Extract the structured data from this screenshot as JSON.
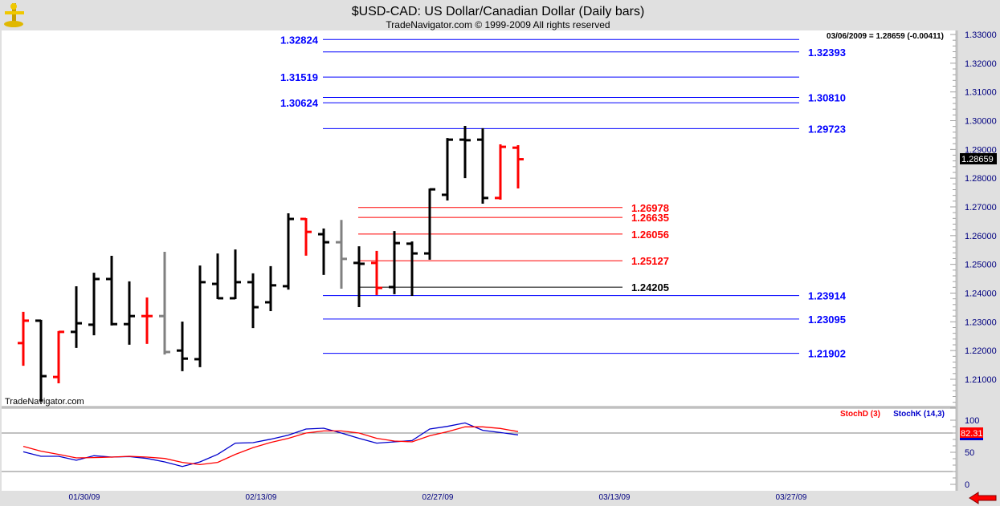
{
  "header": {
    "title": "$USD-CAD:  US Dollar/Canadian Dollar  (Daily bars)",
    "subtitle": "TradeNavigator.com © 1999-2009 All rights reserved",
    "last_quote": "03/06/2009 = 1.28659 (-0.00411)",
    "watermark": "TradeNavigator.com"
  },
  "colors": {
    "up": "#000000",
    "down": "#ff0000",
    "neutral": "#808080",
    "level_blue": "#0000ff",
    "level_red": "#ff0000",
    "axis_text": "#000080",
    "stoch_d": "#ff0000",
    "stoch_k": "#0000cc"
  },
  "chart_data": [
    {
      "type": "ohlc",
      "title": "$USD-CAD:  US Dollar/Canadian Dollar  (Daily bars)",
      "ylim": [
        1.2,
        1.33
      ],
      "y_ticks": [
        "1.33000",
        "1.32000",
        "1.31000",
        "1.30000",
        "1.29000",
        "1.28000",
        "1.27000",
        "1.26000",
        "1.25000",
        "1.24000",
        "1.23000",
        "1.22000",
        "1.21000"
      ],
      "x_ticks": [
        {
          "label": "01/30/09",
          "date": "2009-01-30"
        },
        {
          "label": "02/13/09",
          "date": "2009-02-13"
        },
        {
          "label": "02/27/09",
          "date": "2009-02-27"
        },
        {
          "label": "03/13/09",
          "date": "2009-03-13"
        },
        {
          "label": "03/27/09",
          "date": "2009-03-27"
        }
      ],
      "x_range": [
        "2009-01-27",
        "2009-03-27"
      ],
      "last_price": "1.28659",
      "bars": [
        {
          "date": "2009-01-27",
          "o": 1.2226,
          "h": 1.2332,
          "l": 1.215,
          "c": 1.2304,
          "color": "down"
        },
        {
          "date": "2009-01-28",
          "o": 1.2304,
          "h": 1.2304,
          "l": 1.2025,
          "c": 1.2111,
          "color": "up"
        },
        {
          "date": "2009-01-29",
          "o": 1.2108,
          "h": 1.2265,
          "l": 1.2089,
          "c": 1.2265,
          "color": "down"
        },
        {
          "date": "2009-01-30",
          "o": 1.2265,
          "h": 1.2421,
          "l": 1.2212,
          "c": 1.2295,
          "color": "up"
        },
        {
          "date": "2009-02-02",
          "o": 1.229,
          "h": 1.2468,
          "l": 1.2256,
          "c": 1.2449,
          "color": "up"
        },
        {
          "date": "2009-02-03",
          "o": 1.2449,
          "h": 1.2527,
          "l": 1.229,
          "c": 1.2292,
          "color": "up"
        },
        {
          "date": "2009-02-04",
          "o": 1.2292,
          "h": 1.2438,
          "l": 1.2223,
          "c": 1.232,
          "color": "up"
        },
        {
          "date": "2009-02-05",
          "o": 1.232,
          "h": 1.2382,
          "l": 1.2226,
          "c": 1.232,
          "color": "down"
        },
        {
          "date": "2009-02-06",
          "o": 1.232,
          "h": 1.2541,
          "l": 1.2189,
          "c": 1.2195,
          "color": "neutral"
        },
        {
          "date": "2009-02-09",
          "o": 1.22,
          "h": 1.2298,
          "l": 1.2131,
          "c": 1.2172,
          "color": "up"
        },
        {
          "date": "2009-02-10",
          "o": 1.217,
          "h": 1.2493,
          "l": 1.2145,
          "c": 1.2438,
          "color": "up"
        },
        {
          "date": "2009-02-11",
          "o": 1.2432,
          "h": 1.2535,
          "l": 1.2382,
          "c": 1.2382,
          "color": "up"
        },
        {
          "date": "2009-02-12",
          "o": 1.2382,
          "h": 1.2549,
          "l": 1.2382,
          "c": 1.2438,
          "color": "up"
        },
        {
          "date": "2009-02-13",
          "o": 1.2438,
          "h": 1.2466,
          "l": 1.2281,
          "c": 1.2351,
          "color": "up"
        },
        {
          "date": "2009-02-16",
          "o": 1.2368,
          "h": 1.2491,
          "l": 1.234,
          "c": 1.2427,
          "color": "up"
        },
        {
          "date": "2009-02-17",
          "o": 1.2424,
          "h": 1.2675,
          "l": 1.2415,
          "c": 1.2658,
          "color": "up"
        },
        {
          "date": "2009-02-18",
          "o": 1.2658,
          "h": 1.2658,
          "l": 1.2533,
          "c": 1.2613,
          "color": "down"
        },
        {
          "date": "2009-02-19",
          "o": 1.2605,
          "h": 1.2622,
          "l": 1.2466,
          "c": 1.2577,
          "color": "up"
        },
        {
          "date": "2009-02-20",
          "o": 1.2577,
          "h": 1.2652,
          "l": 1.2418,
          "c": 1.2519,
          "color": "neutral"
        },
        {
          "date": "2009-02-23",
          "o": 1.2505,
          "h": 1.256,
          "l": 1.2354,
          "c": 1.2502,
          "color": "up"
        },
        {
          "date": "2009-02-24",
          "o": 1.2505,
          "h": 1.2544,
          "l": 1.2396,
          "c": 1.2418,
          "color": "down"
        },
        {
          "date": "2009-02-25",
          "o": 1.2421,
          "h": 1.2613,
          "l": 1.2399,
          "c": 1.2574,
          "color": "up"
        },
        {
          "date": "2009-02-26",
          "o": 1.2572,
          "h": 1.2577,
          "l": 1.2393,
          "c": 1.2538,
          "color": "up"
        },
        {
          "date": "2009-02-27",
          "o": 1.2538,
          "h": 1.2761,
          "l": 1.2519,
          "c": 1.2761,
          "color": "up"
        },
        {
          "date": "2009-03-02",
          "o": 1.2742,
          "h": 1.2937,
          "l": 1.2725,
          "c": 1.2934,
          "color": "up"
        },
        {
          "date": "2009-03-03",
          "o": 1.2934,
          "h": 1.2979,
          "l": 1.2803,
          "c": 1.2932,
          "color": "up"
        },
        {
          "date": "2009-03-04",
          "o": 1.2934,
          "h": 1.2971,
          "l": 1.2714,
          "c": 1.2731,
          "color": "up"
        },
        {
          "date": "2009-03-05",
          "o": 1.2731,
          "h": 1.2915,
          "l": 1.2728,
          "c": 1.2909,
          "color": "down"
        },
        {
          "date": "2009-03-06",
          "o": 1.2906,
          "h": 1.2912,
          "l": 1.2767,
          "c": 1.28659,
          "color": "down"
        }
      ],
      "levels": [
        {
          "value": "1.32824",
          "color": "level_blue",
          "label_side": "left",
          "group": "wide"
        },
        {
          "value": "1.32393",
          "color": "level_blue",
          "label_side": "right",
          "group": "wide"
        },
        {
          "value": "1.31519",
          "color": "level_blue",
          "label_side": "left",
          "group": "wide"
        },
        {
          "value": "1.30810",
          "color": "level_blue",
          "label_side": "right",
          "group": "wide"
        },
        {
          "value": "1.30624",
          "color": "level_blue",
          "label_side": "left",
          "group": "wide"
        },
        {
          "value": "1.29723",
          "color": "level_blue",
          "label_side": "right",
          "group": "wide"
        },
        {
          "value": "1.26978",
          "color": "level_red",
          "label_side": "right",
          "group": "short"
        },
        {
          "value": "1.26635",
          "color": "level_red",
          "label_side": "right",
          "group": "short"
        },
        {
          "value": "1.26056",
          "color": "level_red",
          "label_side": "right",
          "group": "short"
        },
        {
          "value": "1.25127",
          "color": "level_red",
          "label_side": "right",
          "group": "short"
        },
        {
          "value": "1.24205",
          "color": "#000000",
          "label_side": "right",
          "group": "short"
        },
        {
          "value": "1.23914",
          "color": "level_blue",
          "label_side": "right",
          "group": "wide"
        },
        {
          "value": "1.23095",
          "color": "level_blue",
          "label_side": "right",
          "group": "wide"
        },
        {
          "value": "1.21902",
          "color": "level_blue",
          "label_side": "right",
          "group": "wide"
        }
      ]
    },
    {
      "type": "line",
      "ylim": [
        0,
        100
      ],
      "y_ticks": [
        "100",
        "50",
        "0"
      ],
      "reference_lines": [
        80,
        20
      ],
      "current_value": "82.31",
      "series": [
        {
          "name": "StochD (3)",
          "color": "stoch_d",
          "values": [
            59.2,
            51.7,
            46.7,
            41.2,
            41.7,
            42.5,
            43.7,
            42.5,
            40.4,
            34.2,
            30.8,
            34.2,
            46.7,
            57.1,
            65.4,
            71.7,
            80,
            83.3,
            83.3,
            80,
            71.7,
            67.5,
            66.2,
            75.8,
            82,
            89.6,
            89.6,
            87.1,
            82.31
          ]
        },
        {
          "name": "StochK (14,3)",
          "color": "stoch_k",
          "values": [
            50.8,
            43.7,
            43.7,
            37.5,
            44.6,
            42.5,
            43.3,
            40.4,
            35,
            27.9,
            35,
            46.7,
            64.2,
            65,
            70.4,
            76.7,
            86.2,
            87.5,
            80,
            71.7,
            64.2,
            66.2,
            68.3,
            86.2,
            90.4,
            95.8,
            84.2,
            80.8,
            77.1
          ]
        }
      ]
    }
  ]
}
